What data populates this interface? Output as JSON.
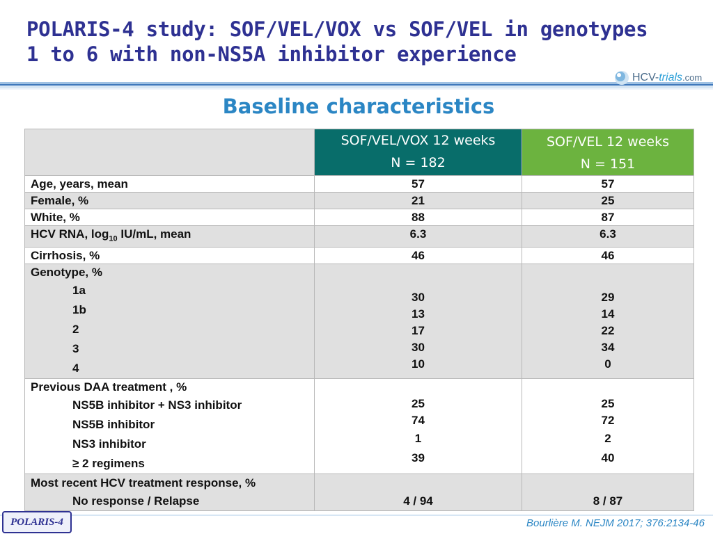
{
  "slide": {
    "title_line1": "POLARIS-4 study: SOF/VEL/VOX vs SOF/VEL in genotypes",
    "title_line2": "1 to 6 with non-NS5A inhibitor experience",
    "subtitle": "Baseline characteristics",
    "logo": {
      "prefix": "HCV-",
      "accent": "trials",
      "suffix": ".com",
      "icon": "hcv-trials-logo-icon"
    },
    "badge": "POLARIS-4",
    "citation": "Bourlière M. NEJM 2017; 376:2134-46"
  },
  "table": {
    "col1": {
      "line1": "SOF/VEL/VOX 12 weeks",
      "line2": "N = 182"
    },
    "col2": {
      "line1": "SOF/VEL 12 weeks",
      "line2": "N = 151"
    },
    "rows": {
      "age": {
        "label": "Age, years, mean",
        "a": "57",
        "b": "57"
      },
      "female": {
        "label": "Female, %",
        "a": "21",
        "b": "25"
      },
      "white": {
        "label": "White, %",
        "a": "88",
        "b": "87"
      },
      "rna": {
        "label_pre": "HCV RNA, log",
        "label_sub": "10",
        "label_post": " IU/mL, mean",
        "a": "6.3",
        "b": "6.3"
      },
      "cirrhosis": {
        "label": "Cirrhosis, %",
        "a": "46",
        "b": "46"
      }
    },
    "genotype": {
      "label": "Genotype, %",
      "items": [
        {
          "label": "1a",
          "a": "30",
          "b": "29"
        },
        {
          "label": "1b",
          "a": "13",
          "b": "14"
        },
        {
          "label": "2",
          "a": "17",
          "b": "22"
        },
        {
          "label": "3",
          "a": "30",
          "b": "34"
        },
        {
          "label": "4",
          "a": "10",
          "b": "0"
        }
      ]
    },
    "daa": {
      "label": "Previous DAA treatment , %",
      "items": [
        {
          "label": "NS5B inhibitor + NS3 inhibitor",
          "a": "25",
          "b": "25"
        },
        {
          "label": "NS5B inhibitor",
          "a": "74",
          "b": "72"
        },
        {
          "label": "NS3 inhibitor",
          "a": "1",
          "b": "2"
        },
        {
          "label": "≥ 2 regimens",
          "a": "39",
          "b": "40"
        }
      ]
    },
    "response": {
      "label": "Most recent HCV treatment response, %",
      "sub_label": "No response / Relapse",
      "a": "4 / 94",
      "b": "8 / 87"
    }
  },
  "colors": {
    "title": "#2e3192",
    "subtitle": "#2b86c4",
    "col1_header": "#086d6a",
    "col2_header": "#6cb33f",
    "grey_row": "#e0e0e0"
  }
}
